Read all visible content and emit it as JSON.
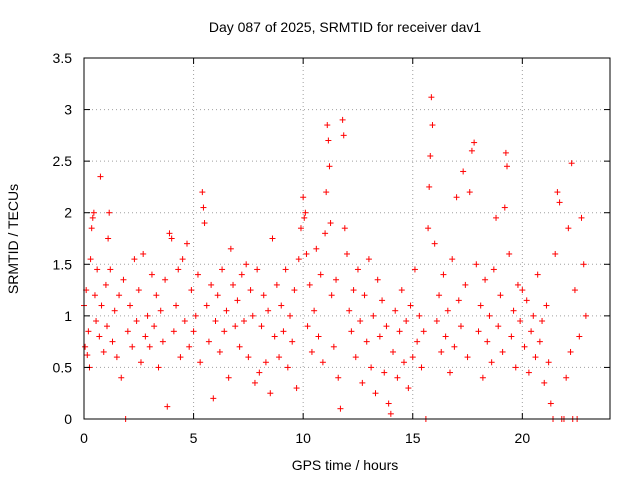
{
  "chart_data": {
    "type": "scatter",
    "title": "Day 087 of 2025, SRMTID for receiver dav1",
    "xlabel": "GPS time / hours",
    "ylabel": "SRMTID / TECUs",
    "xlim": [
      0,
      24
    ],
    "ylim": [
      0,
      3.5
    ],
    "x_ticks": [
      0,
      5,
      10,
      15,
      20
    ],
    "x_tick_labels": [
      "0",
      "5",
      "10",
      "15",
      "20"
    ],
    "y_ticks": [
      0,
      0.5,
      1,
      1.5,
      2,
      2.5,
      3,
      3.5
    ],
    "y_tick_labels": [
      "0",
      "0.5",
      "1",
      "1.5",
      "2",
      "2.5",
      "3",
      "3.5"
    ],
    "grid": true,
    "marker": "+",
    "color": "#ff0000",
    "series": [
      {
        "name": "SRMTID",
        "points": [
          [
            0.0,
            1.1
          ],
          [
            0.05,
            0.7
          ],
          [
            0.1,
            1.25
          ],
          [
            0.15,
            0.62
          ],
          [
            0.2,
            0.85
          ],
          [
            0.25,
            0.5
          ],
          [
            0.3,
            1.55
          ],
          [
            0.35,
            1.85
          ],
          [
            0.4,
            1.95
          ],
          [
            0.45,
            2.0
          ],
          [
            0.5,
            1.2
          ],
          [
            0.55,
            0.95
          ],
          [
            0.6,
            1.45
          ],
          [
            0.7,
            0.8
          ],
          [
            0.75,
            2.35
          ],
          [
            0.8,
            1.1
          ],
          [
            0.9,
            0.65
          ],
          [
            1.0,
            1.3
          ],
          [
            1.05,
            0.9
          ],
          [
            1.1,
            1.75
          ],
          [
            1.15,
            2.0
          ],
          [
            1.2,
            1.45
          ],
          [
            1.3,
            0.75
          ],
          [
            1.4,
            1.05
          ],
          [
            1.5,
            0.6
          ],
          [
            1.6,
            1.2
          ],
          [
            1.7,
            0.4
          ],
          [
            1.8,
            1.35
          ],
          [
            1.9,
            0.0
          ],
          [
            2.0,
            0.85
          ],
          [
            2.1,
            1.1
          ],
          [
            2.2,
            0.7
          ],
          [
            2.3,
            1.55
          ],
          [
            2.4,
            0.95
          ],
          [
            2.5,
            1.25
          ],
          [
            2.6,
            0.55
          ],
          [
            2.7,
            1.6
          ],
          [
            2.8,
            0.8
          ],
          [
            2.9,
            1.0
          ],
          [
            3.0,
            0.7
          ],
          [
            3.1,
            1.4
          ],
          [
            3.2,
            0.9
          ],
          [
            3.3,
            1.2
          ],
          [
            3.4,
            0.5
          ],
          [
            3.5,
            1.05
          ],
          [
            3.6,
            0.75
          ],
          [
            3.7,
            1.35
          ],
          [
            3.8,
            0.12
          ],
          [
            3.9,
            1.8
          ],
          [
            4.0,
            1.75
          ],
          [
            4.1,
            0.85
          ],
          [
            4.2,
            1.1
          ],
          [
            4.3,
            1.45
          ],
          [
            4.4,
            0.6
          ],
          [
            4.5,
            1.55
          ],
          [
            4.6,
            0.95
          ],
          [
            4.7,
            1.7
          ],
          [
            4.8,
            0.7
          ],
          [
            4.9,
            1.25
          ],
          [
            5.0,
            0.85
          ],
          [
            5.1,
            1.0
          ],
          [
            5.2,
            1.4
          ],
          [
            5.3,
            0.55
          ],
          [
            5.4,
            2.2
          ],
          [
            5.45,
            2.05
          ],
          [
            5.5,
            1.9
          ],
          [
            5.6,
            1.1
          ],
          [
            5.7,
            0.75
          ],
          [
            5.8,
            1.3
          ],
          [
            5.9,
            0.2
          ],
          [
            6.0,
            0.95
          ],
          [
            6.1,
            1.2
          ],
          [
            6.2,
            0.65
          ],
          [
            6.3,
            1.45
          ],
          [
            6.4,
            0.85
          ],
          [
            6.5,
            1.05
          ],
          [
            6.6,
            0.4
          ],
          [
            6.7,
            1.65
          ],
          [
            6.8,
            1.3
          ],
          [
            6.9,
            0.9
          ],
          [
            7.0,
            1.15
          ],
          [
            7.1,
            0.7
          ],
          [
            7.2,
            1.4
          ],
          [
            7.3,
            0.95
          ],
          [
            7.4,
            1.5
          ],
          [
            7.5,
            0.6
          ],
          [
            7.6,
            1.25
          ],
          [
            7.7,
            1.0
          ],
          [
            7.8,
            0.35
          ],
          [
            7.9,
            1.45
          ],
          [
            8.0,
            0.45
          ],
          [
            8.1,
            0.9
          ],
          [
            8.2,
            1.2
          ],
          [
            8.3,
            0.55
          ],
          [
            8.4,
            1.05
          ],
          [
            8.5,
            0.25
          ],
          [
            8.6,
            1.75
          ],
          [
            8.7,
            0.8
          ],
          [
            8.8,
            1.3
          ],
          [
            8.9,
            0.6
          ],
          [
            9.0,
            1.1
          ],
          [
            9.1,
            0.85
          ],
          [
            9.2,
            1.45
          ],
          [
            9.3,
            0.5
          ],
          [
            9.4,
            1.0
          ],
          [
            9.5,
            0.75
          ],
          [
            9.6,
            1.25
          ],
          [
            9.7,
            0.3
          ],
          [
            9.8,
            1.55
          ],
          [
            9.9,
            1.85
          ],
          [
            10.0,
            2.15
          ],
          [
            10.05,
            1.95
          ],
          [
            10.1,
            2.0
          ],
          [
            10.15,
            1.6
          ],
          [
            10.2,
            0.9
          ],
          [
            10.3,
            1.3
          ],
          [
            10.4,
            0.65
          ],
          [
            10.5,
            1.05
          ],
          [
            10.6,
            1.65
          ],
          [
            10.7,
            0.8
          ],
          [
            10.8,
            1.4
          ],
          [
            10.9,
            0.55
          ],
          [
            11.0,
            1.8
          ],
          [
            11.05,
            2.2
          ],
          [
            11.1,
            2.85
          ],
          [
            11.15,
            2.7
          ],
          [
            11.2,
            2.45
          ],
          [
            11.25,
            1.9
          ],
          [
            11.3,
            1.2
          ],
          [
            11.4,
            0.7
          ],
          [
            11.5,
            1.35
          ],
          [
            11.6,
            0.4
          ],
          [
            11.7,
            0.1
          ],
          [
            11.8,
            2.9
          ],
          [
            11.85,
            2.75
          ],
          [
            11.9,
            1.85
          ],
          [
            12.0,
            1.6
          ],
          [
            12.1,
            1.05
          ],
          [
            12.2,
            0.85
          ],
          [
            12.3,
            1.25
          ],
          [
            12.4,
            0.6
          ],
          [
            12.5,
            1.45
          ],
          [
            12.6,
            0.95
          ],
          [
            12.7,
            0.35
          ],
          [
            12.8,
            1.2
          ],
          [
            12.9,
            0.75
          ],
          [
            13.0,
            1.55
          ],
          [
            13.1,
            0.5
          ],
          [
            13.2,
            1.0
          ],
          [
            13.3,
            0.25
          ],
          [
            13.4,
            1.35
          ],
          [
            13.5,
            0.8
          ],
          [
            13.6,
            1.15
          ],
          [
            13.7,
            0.45
          ],
          [
            13.8,
            0.9
          ],
          [
            13.9,
            0.15
          ],
          [
            14.0,
            0.05
          ],
          [
            14.1,
            0.65
          ],
          [
            14.2,
            1.05
          ],
          [
            14.3,
            0.4
          ],
          [
            14.4,
            0.85
          ],
          [
            14.5,
            1.25
          ],
          [
            14.6,
            0.55
          ],
          [
            14.7,
            0.95
          ],
          [
            14.8,
            0.3
          ],
          [
            14.9,
            1.1
          ],
          [
            15.0,
            0.6
          ],
          [
            15.1,
            1.45
          ],
          [
            15.2,
            0.75
          ],
          [
            15.3,
            1.0
          ],
          [
            15.4,
            0.5
          ],
          [
            15.5,
            0.85
          ],
          [
            15.6,
            0.0
          ],
          [
            15.7,
            1.85
          ],
          [
            15.75,
            2.25
          ],
          [
            15.8,
            2.55
          ],
          [
            15.85,
            3.12
          ],
          [
            15.9,
            2.85
          ],
          [
            16.0,
            1.7
          ],
          [
            16.1,
            0.95
          ],
          [
            16.2,
            1.2
          ],
          [
            16.3,
            0.65
          ],
          [
            16.4,
            1.4
          ],
          [
            16.5,
            0.8
          ],
          [
            16.6,
            1.05
          ],
          [
            16.7,
            0.45
          ],
          [
            16.8,
            1.55
          ],
          [
            16.9,
            0.7
          ],
          [
            17.0,
            2.15
          ],
          [
            17.1,
            1.15
          ],
          [
            17.2,
            0.9
          ],
          [
            17.3,
            2.4
          ],
          [
            17.4,
            1.3
          ],
          [
            17.5,
            0.6
          ],
          [
            17.6,
            2.2
          ],
          [
            17.7,
            2.6
          ],
          [
            17.8,
            2.68
          ],
          [
            17.9,
            1.5
          ],
          [
            18.0,
            0.85
          ],
          [
            18.1,
            1.1
          ],
          [
            18.2,
            0.4
          ],
          [
            18.3,
            1.35
          ],
          [
            18.4,
            0.75
          ],
          [
            18.5,
            1.0
          ],
          [
            18.6,
            0.55
          ],
          [
            18.7,
            1.45
          ],
          [
            18.8,
            1.95
          ],
          [
            18.9,
            0.9
          ],
          [
            19.0,
            1.2
          ],
          [
            19.1,
            0.65
          ],
          [
            19.2,
            2.05
          ],
          [
            19.25,
            2.58
          ],
          [
            19.3,
            2.45
          ],
          [
            19.4,
            1.6
          ],
          [
            19.5,
            0.8
          ],
          [
            19.6,
            1.05
          ],
          [
            19.7,
            0.5
          ],
          [
            19.8,
            1.3
          ],
          [
            19.9,
            0.95
          ],
          [
            20.0,
            1.25
          ],
          [
            20.1,
            0.7
          ],
          [
            20.2,
            1.15
          ],
          [
            20.3,
            0.45
          ],
          [
            20.4,
            0.85
          ],
          [
            20.5,
            1.0
          ],
          [
            20.6,
            0.6
          ],
          [
            20.7,
            1.4
          ],
          [
            20.8,
            0.75
          ],
          [
            20.9,
            0.95
          ],
          [
            21.0,
            0.35
          ],
          [
            21.1,
            1.1
          ],
          [
            21.2,
            0.55
          ],
          [
            21.3,
            0.15
          ],
          [
            21.4,
            0.0
          ],
          [
            21.5,
            1.6
          ],
          [
            21.6,
            2.2
          ],
          [
            21.7,
            2.1
          ],
          [
            21.8,
            0.0
          ],
          [
            21.9,
            0.0
          ],
          [
            22.0,
            0.4
          ],
          [
            22.1,
            1.85
          ],
          [
            22.2,
            0.65
          ],
          [
            22.25,
            2.48
          ],
          [
            22.3,
            0.0
          ],
          [
            22.4,
            1.25
          ],
          [
            22.5,
            0.0
          ],
          [
            22.6,
            0.8
          ],
          [
            22.7,
            1.95
          ],
          [
            22.8,
            1.5
          ],
          [
            22.9,
            1.0
          ]
        ]
      }
    ]
  }
}
